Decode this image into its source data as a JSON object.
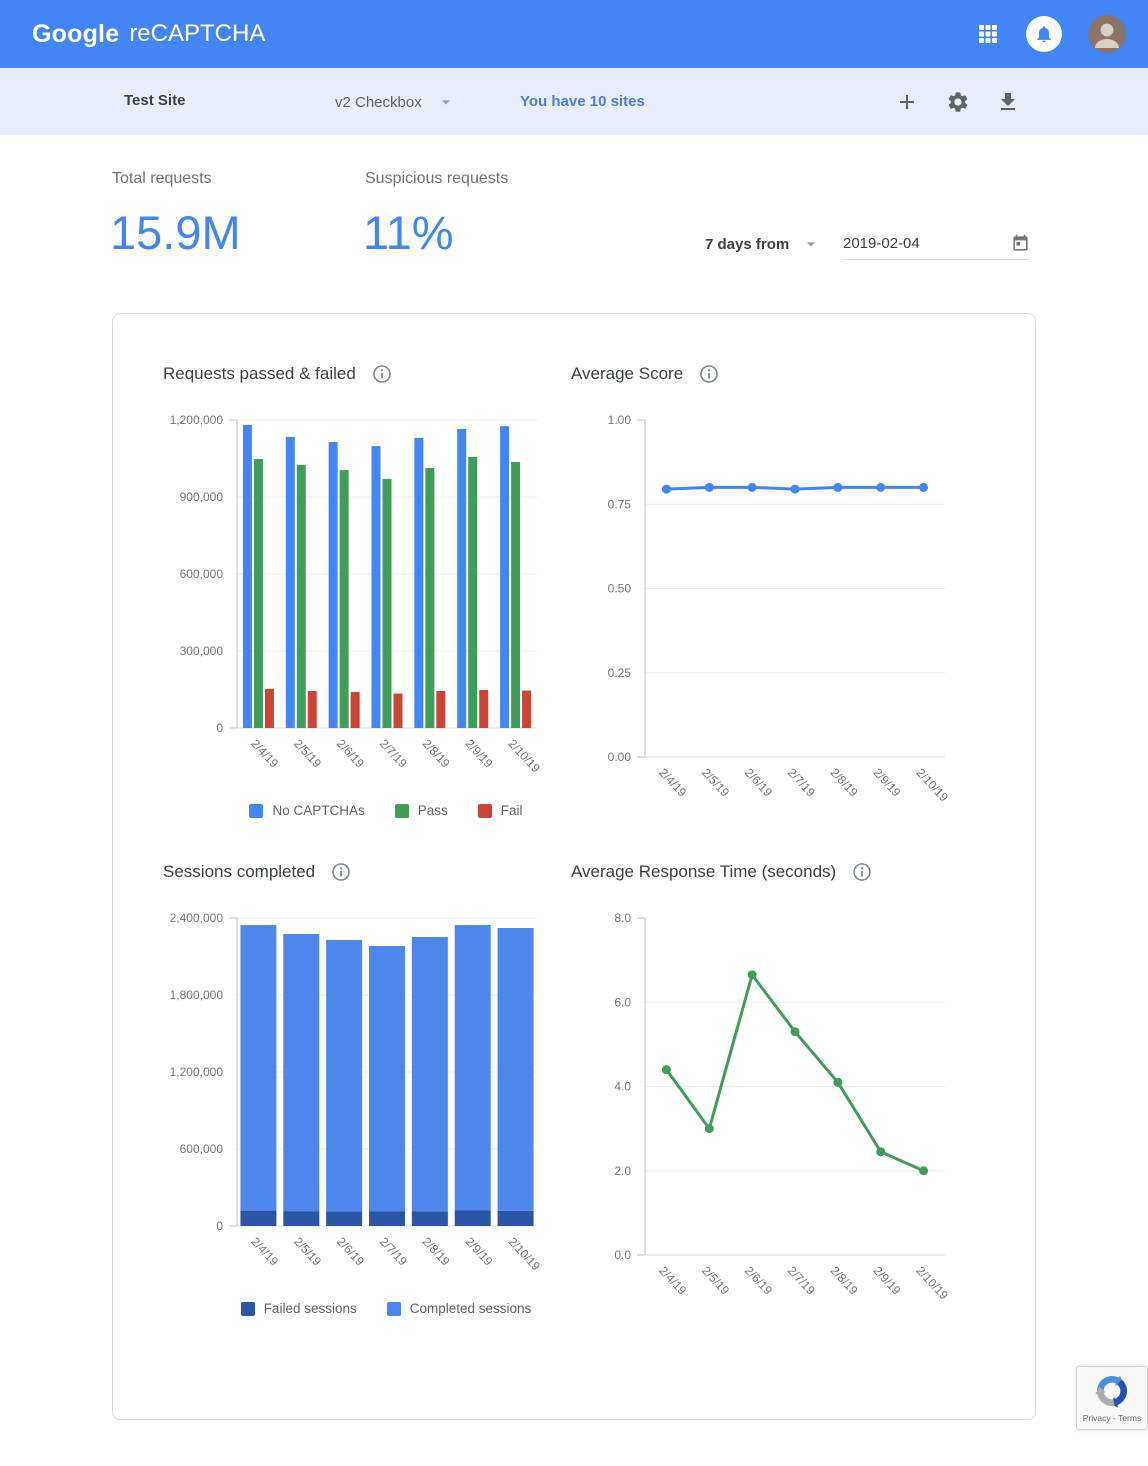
{
  "header": {
    "brand_primary": "Google",
    "brand_secondary": "reCAPTCHA"
  },
  "toolbar": {
    "site_name": "Test Site",
    "site_type": "v2 Checkbox",
    "sites_link": "You have 10 sites"
  },
  "stats": [
    {
      "label": "Total requests",
      "value": "15.9M"
    },
    {
      "label": "Suspicious requests",
      "value": "11%"
    }
  ],
  "date_filter": {
    "range_label": "7 days from",
    "date_value": "2019-02-04"
  },
  "badge": {
    "privacy_terms": "Privacy - Terms"
  },
  "colors": {
    "header_bar": "#4285f4",
    "toolbar_bg": "#e8eef9",
    "accent_blue": "#4285f4",
    "bar_blue": "#4285f4",
    "bar_green": "#3f9d58",
    "bar_red": "#cc4437",
    "failed_dark_blue": "#2a56a5",
    "completed_light_blue": "#4e86ec"
  },
  "chart_data": [
    {
      "id": "requests-passed-failed",
      "type": "grouped_bar",
      "title": "Requests passed & failed",
      "categories": [
        "2/4/19",
        "2/5/19",
        "2/6/19",
        "2/7/19",
        "2/8/19",
        "2/9/19",
        "2/10/19"
      ],
      "series": [
        {
          "name": "No CAPTCHAs",
          "color": "#4285f4",
          "values": [
            1181000,
            1134000,
            1114000,
            1098000,
            1130000,
            1165000,
            1176000
          ]
        },
        {
          "name": "Pass",
          "color": "#3f9d58",
          "values": [
            1048000,
            1025000,
            1005000,
            970000,
            1013000,
            1056000,
            1036000
          ]
        },
        {
          "name": "Fail",
          "color": "#cc4437",
          "values": [
            152000,
            144000,
            140000,
            134000,
            144000,
            148000,
            146000
          ]
        }
      ],
      "ylim": [
        0,
        1200000
      ],
      "yticks": [
        {
          "v": 0,
          "label": "0"
        },
        {
          "v": 300000,
          "label": "300,000"
        },
        {
          "v": 600000,
          "label": "600,000"
        },
        {
          "v": 900000,
          "label": "900,000"
        },
        {
          "v": 1200000,
          "label": "1,200,000"
        }
      ],
      "show_legend": true,
      "grid": true,
      "legend_position": "bottom"
    },
    {
      "id": "average-score",
      "type": "line",
      "title": "Average Score",
      "categories": [
        "2/4/19",
        "2/5/19",
        "2/6/19",
        "2/7/19",
        "2/8/19",
        "2/9/19",
        "2/10/19"
      ],
      "series": [
        {
          "name": "Average score",
          "color": "#4285f4",
          "values": [
            0.795,
            0.8,
            0.8,
            0.795,
            0.8,
            0.8,
            0.8
          ]
        }
      ],
      "ylim": [
        0,
        1
      ],
      "yticks": [
        {
          "v": 0,
          "label": "0.00"
        },
        {
          "v": 0.25,
          "label": "0.25"
        },
        {
          "v": 0.5,
          "label": "0.50"
        },
        {
          "v": 0.75,
          "label": "0.75"
        },
        {
          "v": 1.0,
          "label": "1.00"
        }
      ],
      "show_legend": false,
      "grid": true,
      "legend_position": "none"
    },
    {
      "id": "sessions-completed",
      "type": "stacked_bar",
      "title": "Sessions completed",
      "categories": [
        "2/4/19",
        "2/5/19",
        "2/6/19",
        "2/7/19",
        "2/8/19",
        "2/9/19",
        "2/10/19"
      ],
      "series": [
        {
          "name": "Failed sessions",
          "color": "#2a56a5",
          "values": [
            120000,
            116000,
            114000,
            113000,
            115000,
            121000,
            119000
          ]
        },
        {
          "name": "Completed sessions",
          "color": "#4e86ec",
          "values": [
            2225000,
            2159000,
            2115000,
            2069000,
            2137000,
            2224000,
            2203000
          ]
        }
      ],
      "ylim": [
        0,
        2400000
      ],
      "yticks": [
        {
          "v": 0,
          "label": "0"
        },
        {
          "v": 600000,
          "label": "600,000"
        },
        {
          "v": 1200000,
          "label": "1,200,000"
        },
        {
          "v": 1800000,
          "label": "1,800,000"
        },
        {
          "v": 2400000,
          "label": "2,400,000"
        }
      ],
      "show_legend": true,
      "grid": true,
      "legend_position": "bottom"
    },
    {
      "id": "average-response-time",
      "type": "line",
      "title": "Average Response Time (seconds)",
      "categories": [
        "2/4/19",
        "2/5/19",
        "2/6/19",
        "2/7/19",
        "2/8/19",
        "2/9/19",
        "2/10/19"
      ],
      "series": [
        {
          "name": "Average response time",
          "color": "#3f9d58",
          "values": [
            4.4,
            3.0,
            6.65,
            5.3,
            4.1,
            2.45,
            2.0
          ]
        }
      ],
      "ylim": [
        0,
        8
      ],
      "yticks": [
        {
          "v": 0,
          "label": "0.0"
        },
        {
          "v": 2,
          "label": "2.0"
        },
        {
          "v": 4,
          "label": "4.0"
        },
        {
          "v": 6,
          "label": "6.0"
        },
        {
          "v": 8,
          "label": "8.0"
        }
      ],
      "show_legend": false,
      "grid": true,
      "legend_position": "none"
    }
  ]
}
